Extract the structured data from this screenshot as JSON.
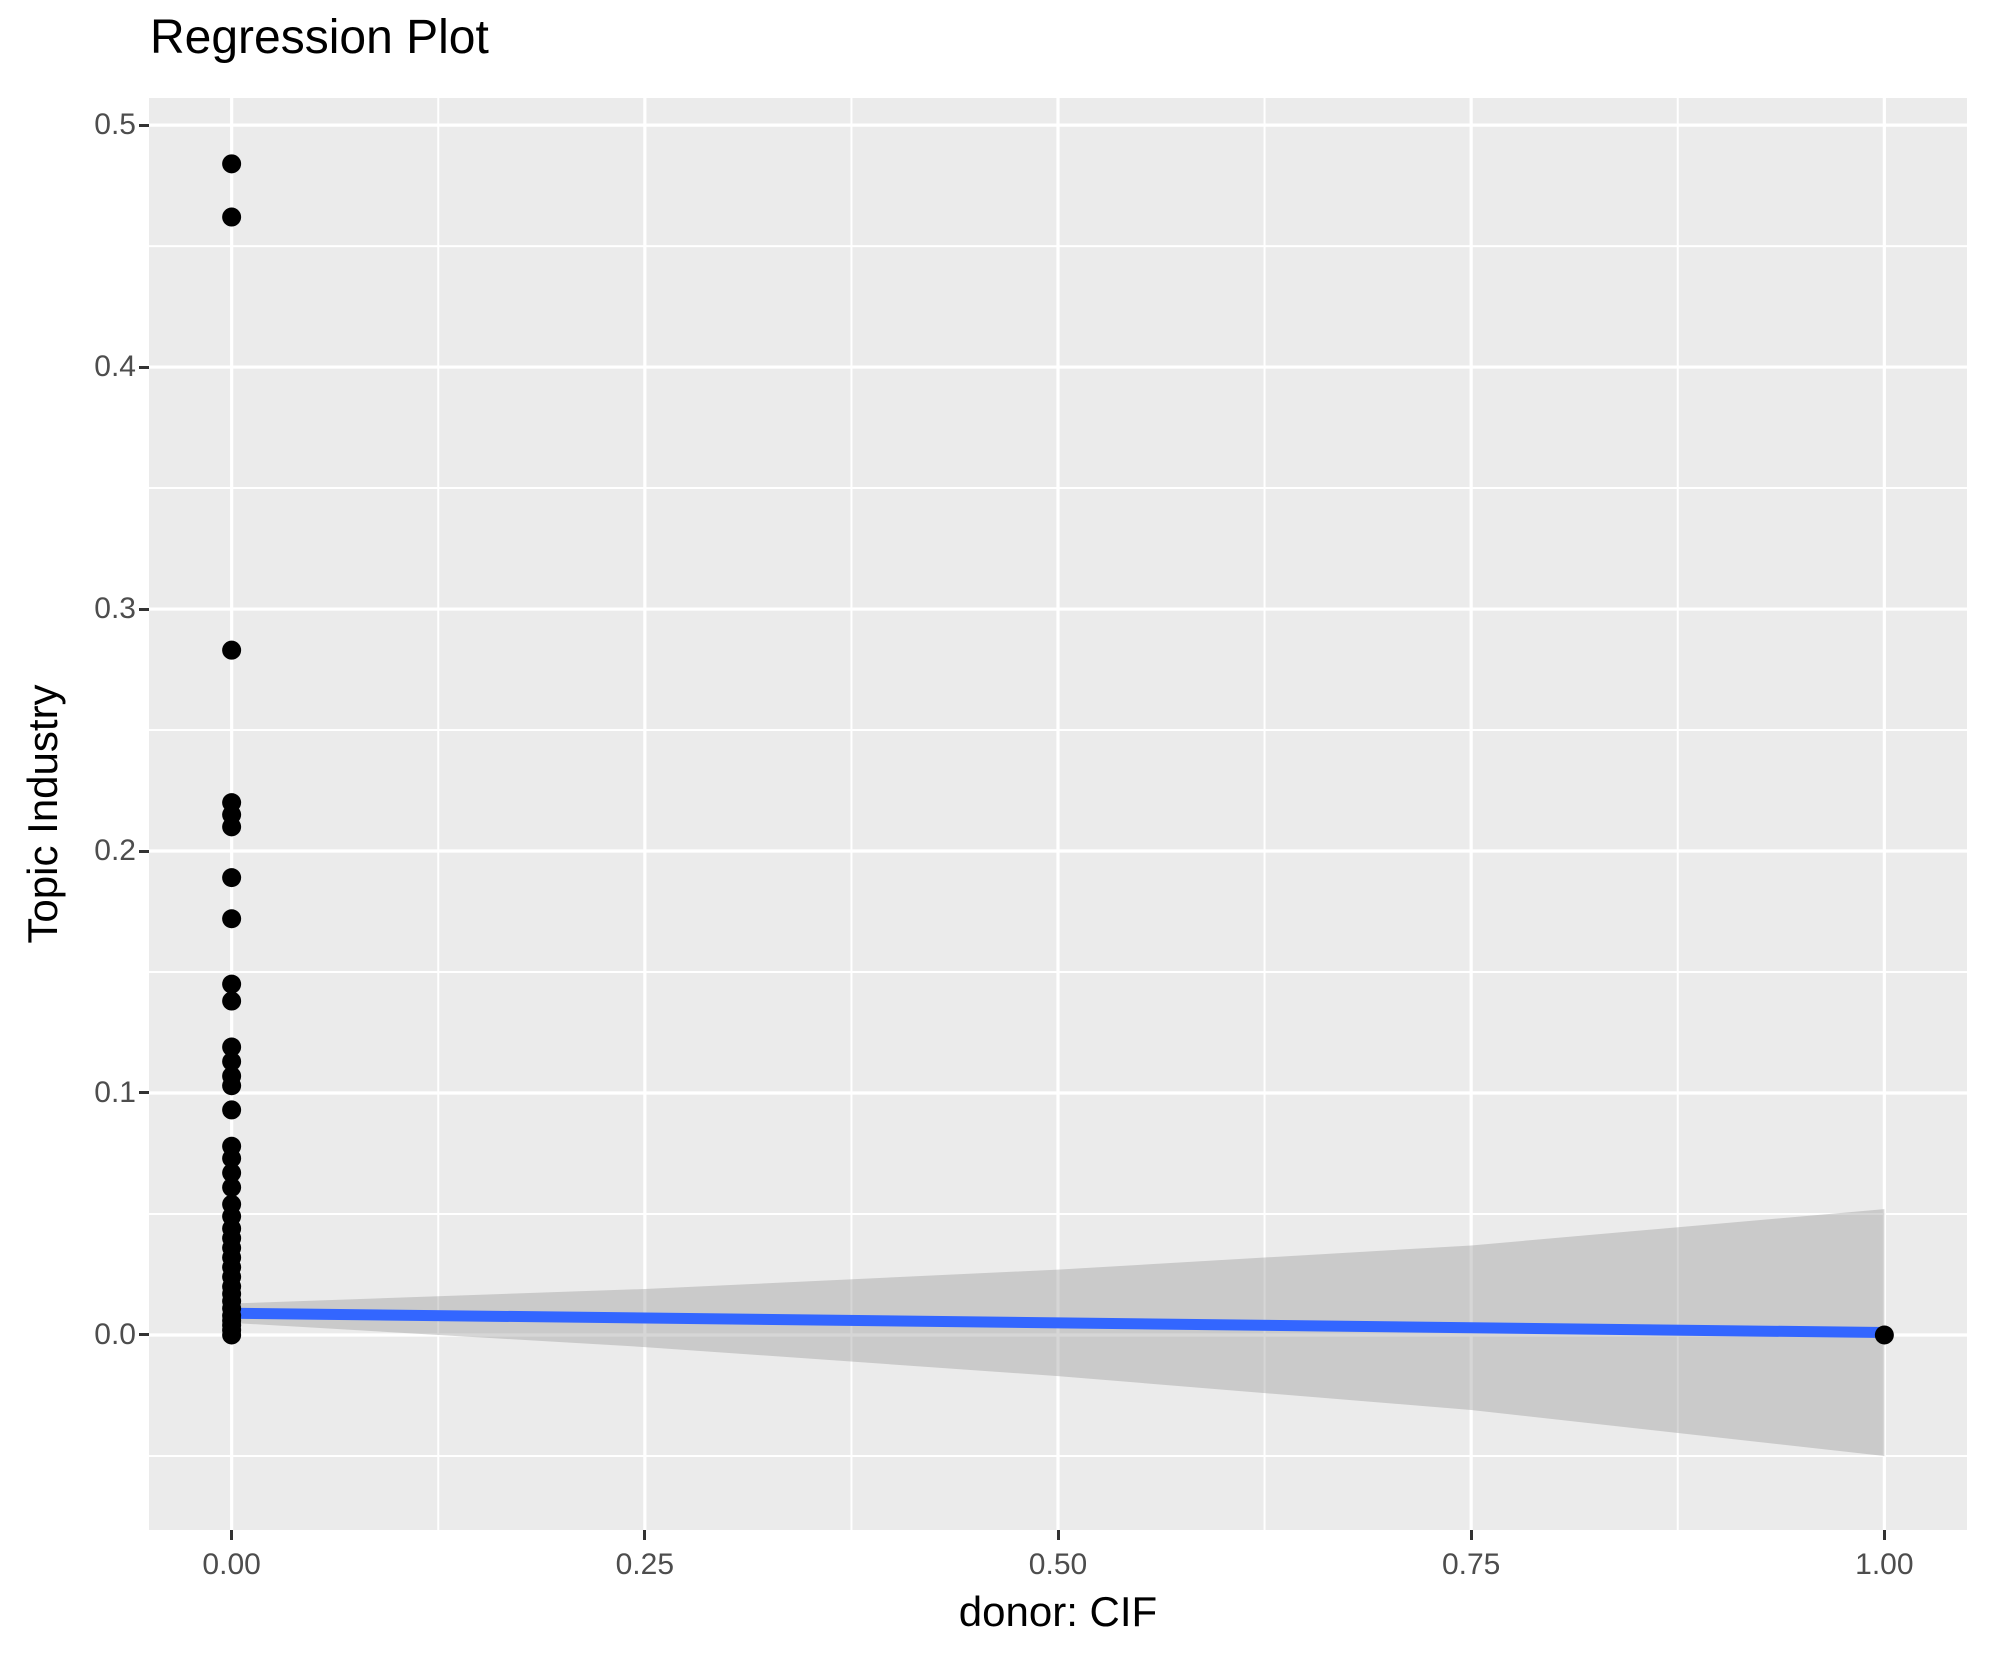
{
  "title": "Regression Plot",
  "chart_data": {
    "type": "scatter",
    "title": "Regression Plot",
    "xlabel": "donor: CIF",
    "ylabel": "Topic Industry",
    "xlim": [
      -0.05,
      1.05
    ],
    "ylim": [
      -0.0806,
      0.5112
    ],
    "grid": "on",
    "legend": "none",
    "x_ticks": {
      "values": [
        0,
        0.25,
        0.5,
        0.75,
        1.0
      ],
      "labels": [
        "0.00",
        "0.25",
        "0.50",
        "0.75",
        "1.00"
      ]
    },
    "y_ticks": {
      "values": [
        0,
        0.1,
        0.2,
        0.3,
        0.4,
        0.5
      ],
      "labels": [
        "0.0",
        "0.1",
        "0.2",
        "0.3",
        "0.4",
        "0.5"
      ]
    },
    "x_minor": [
      0.125,
      0.375,
      0.625,
      0.875
    ],
    "y_minor": [
      -0.05,
      0.05,
      0.15,
      0.25,
      0.35,
      0.45
    ],
    "points": [
      [
        0,
        0.484
      ],
      [
        0,
        0.462
      ],
      [
        0,
        0.283
      ],
      [
        0,
        0.22
      ],
      [
        0,
        0.215
      ],
      [
        0,
        0.21
      ],
      [
        0,
        0.189
      ],
      [
        0,
        0.172
      ],
      [
        0,
        0.145
      ],
      [
        0,
        0.138
      ],
      [
        0,
        0.119
      ],
      [
        0,
        0.113
      ],
      [
        0,
        0.107
      ],
      [
        0,
        0.103
      ],
      [
        0,
        0.093
      ],
      [
        0,
        0.078
      ],
      [
        0,
        0.073
      ],
      [
        0,
        0.067
      ],
      [
        0,
        0.061
      ],
      [
        0,
        0.054
      ],
      [
        0,
        0.049
      ],
      [
        0,
        0.044
      ],
      [
        0,
        0.04
      ],
      [
        0,
        0.036
      ],
      [
        0,
        0.032
      ],
      [
        0,
        0.028
      ],
      [
        0,
        0.024
      ],
      [
        0,
        0.02
      ],
      [
        0,
        0.017
      ],
      [
        0,
        0.014
      ],
      [
        0,
        0.011
      ],
      [
        0,
        0.008
      ],
      [
        0,
        0.006
      ],
      [
        0,
        0.004
      ],
      [
        0,
        0.002
      ],
      [
        0,
        0.0
      ],
      [
        1,
        0.0
      ]
    ],
    "regression_line": {
      "x": [
        0,
        1
      ],
      "y": [
        0.009,
        0.001
      ]
    },
    "ci_band": {
      "x": [
        0,
        0.25,
        0.5,
        0.75,
        1.0
      ],
      "upper": [
        0.013,
        0.019,
        0.027,
        0.037,
        0.052
      ],
      "lower": [
        0.005,
        -0.005,
        -0.017,
        -0.031,
        -0.05
      ]
    },
    "colors": {
      "panel_bg": "#EBEBEB",
      "grid": "#FFFFFF",
      "point": "#000000",
      "regression_line": "#3366FF",
      "ci_band": "#999999",
      "ci_band_opacity": 0.4,
      "tick_label": "#4D4D4D",
      "tick_mark": "#333333",
      "axis_title": "#000000",
      "title": "#000000"
    }
  }
}
